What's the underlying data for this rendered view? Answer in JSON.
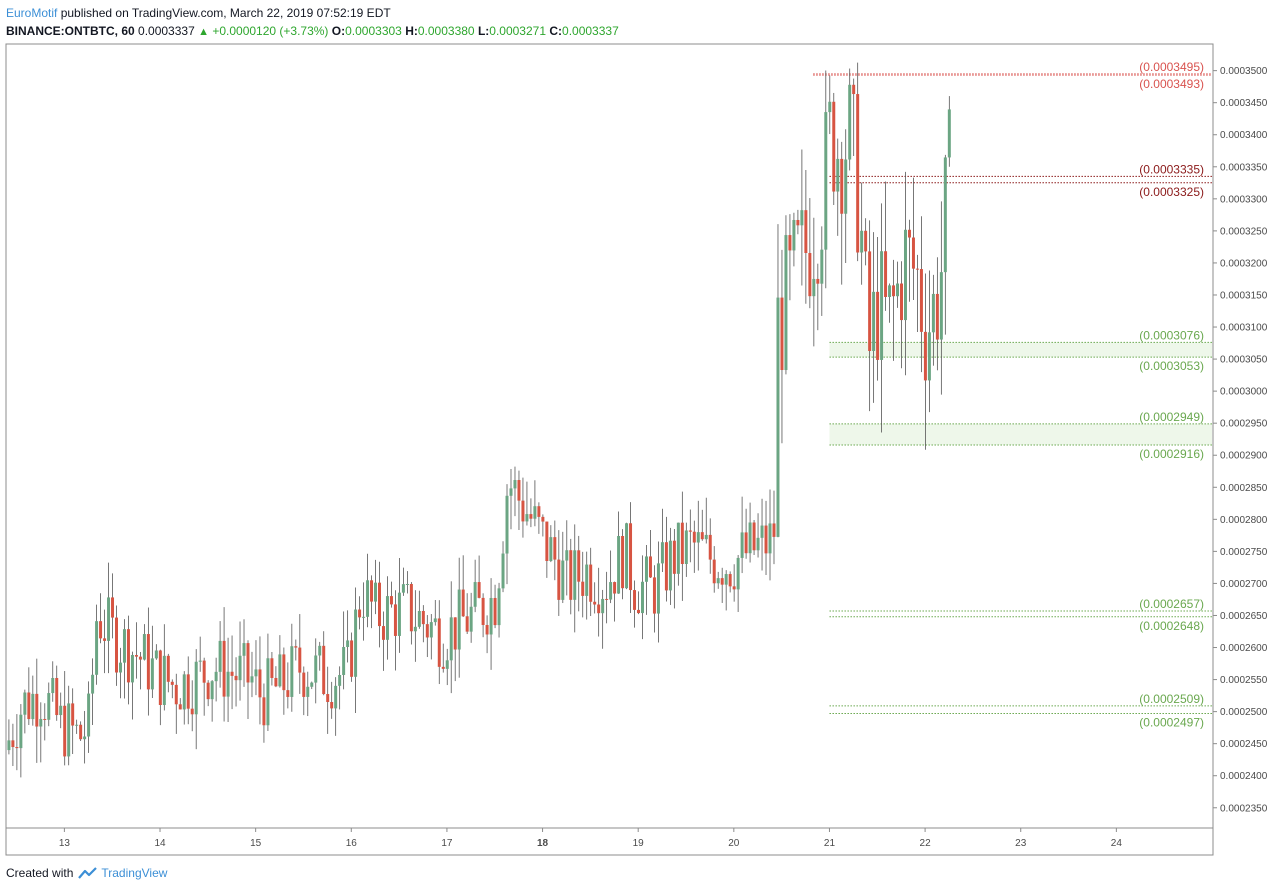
{
  "header": {
    "author": "EuroMotif",
    "published_text": "published on TradingView.com, March 22, 2019 07:52:19 EDT",
    "symbol": "BINANCE:ONTBTC, 60",
    "last": "0.0003337",
    "change": "+0.0000120 (+3.73%)",
    "o_label": "O:",
    "o_value": "0.0003303",
    "h_label": "H:",
    "h_value": "0.0003380",
    "l_label": "L:",
    "l_value": "0.0003271",
    "c_label": "C:",
    "c_value": "0.0003337"
  },
  "footer": {
    "created_with": "Created with",
    "brand": "TradingView"
  },
  "colors": {
    "up": "#6ba583",
    "down": "#d75442",
    "resistance": "#d9534f",
    "resistance_dark": "#8b1a1a",
    "support": "#6aa84f",
    "support_fill": "#eef7ea"
  },
  "chart_data": {
    "type": "candlestick",
    "symbol": "BINANCE:ONTBTC",
    "interval": "60",
    "xlim": [
      12.4,
      25.0
    ],
    "ylim": [
      0.000232,
      0.000354
    ],
    "x_ticks": [
      {
        "label": "13",
        "day": 13,
        "bold": false
      },
      {
        "label": "14",
        "day": 14,
        "bold": false
      },
      {
        "label": "15",
        "day": 15,
        "bold": false
      },
      {
        "label": "16",
        "day": 16,
        "bold": false
      },
      {
        "label": "17",
        "day": 17,
        "bold": false
      },
      {
        "label": "18",
        "day": 18,
        "bold": true
      },
      {
        "label": "19",
        "day": 19,
        "bold": false
      },
      {
        "label": "20",
        "day": 20,
        "bold": false
      },
      {
        "label": "21",
        "day": 21,
        "bold": false
      },
      {
        "label": "22",
        "day": 22,
        "bold": false
      },
      {
        "label": "23",
        "day": 23,
        "bold": false
      },
      {
        "label": "24",
        "day": 24,
        "bold": false
      }
    ],
    "y_ticks": [
      "0.0003500",
      "0.0003450",
      "0.0003400",
      "0.0003350",
      "0.0003300",
      "0.0003250",
      "0.0003200",
      "0.0003150",
      "0.0003100",
      "0.0003050",
      "0.0003000",
      "0.0002950",
      "0.0002900",
      "0.0002850",
      "0.0002800",
      "0.0002750",
      "0.0002700",
      "0.0002650",
      "0.0002600",
      "0.0002550",
      "0.0002500",
      "0.0002450",
      "0.0002400",
      "0.0002350"
    ],
    "price_path": [
      [
        12.42,
        0.000244
      ],
      [
        12.6,
        0.000251
      ],
      [
        12.8,
        0.000253
      ],
      [
        13.0,
        0.000248
      ],
      [
        13.2,
        0.000246
      ],
      [
        13.3,
        0.000248
      ],
      [
        13.38,
        0.000265
      ],
      [
        13.6,
        0.000261
      ],
      [
        13.8,
        0.000259
      ],
      [
        14.0,
        0.000256
      ],
      [
        14.2,
        0.000254
      ],
      [
        14.4,
        0.000255
      ],
      [
        14.6,
        0.000257
      ],
      [
        14.8,
        0.000256
      ],
      [
        15.0,
        0.000255
      ],
      [
        15.1,
        0.0002525
      ],
      [
        15.3,
        0.000254
      ],
      [
        15.5,
        0.000257
      ],
      [
        15.8,
        0.0002555
      ],
      [
        16.0,
        0.000256
      ],
      [
        16.15,
        0.000269
      ],
      [
        16.3,
        0.000265
      ],
      [
        16.6,
        0.000266
      ],
      [
        16.8,
        0.000264
      ],
      [
        17.0,
        0.000262
      ],
      [
        17.2,
        0.000264
      ],
      [
        17.4,
        0.000266
      ],
      [
        17.55,
        0.000268
      ],
      [
        17.68,
        0.000286
      ],
      [
        17.85,
        0.000282
      ],
      [
        18.0,
        0.000278
      ],
      [
        18.2,
        0.000273
      ],
      [
        18.3,
        0.00027
      ],
      [
        18.5,
        0.000272
      ],
      [
        18.7,
        0.00027
      ],
      [
        18.9,
        0.000275
      ],
      [
        19.0,
        0.00027
      ],
      [
        19.2,
        0.000269
      ],
      [
        19.4,
        0.000274
      ],
      [
        19.6,
        0.000276
      ],
      [
        19.8,
        0.000274
      ],
      [
        20.0,
        0.000273
      ],
      [
        20.2,
        0.000275
      ],
      [
        20.35,
        0.000276
      ],
      [
        20.46,
        0.000277
      ],
      [
        20.5,
        0.00031
      ],
      [
        20.7,
        0.000319
      ],
      [
        20.85,
        0.000324
      ],
      [
        20.95,
        0.000329
      ],
      [
        21.05,
        0.00034
      ],
      [
        21.15,
        0.000338
      ],
      [
        21.25,
        0.00034
      ],
      [
        21.32,
        0.000334
      ],
      [
        21.38,
        0.000323
      ],
      [
        21.45,
        0.000305
      ],
      [
        21.55,
        0.000314
      ],
      [
        21.65,
        0.00031
      ],
      [
        21.75,
        0.000315
      ],
      [
        21.82,
        0.000321
      ],
      [
        21.92,
        0.000319
      ],
      [
        21.98,
        0.000317
      ],
      [
        22.03,
        0.00031
      ],
      [
        22.12,
        0.000312
      ],
      [
        22.2,
        0.000317
      ],
      [
        22.27,
        0.0003303
      ],
      [
        22.29,
        0.0003337
      ]
    ],
    "levels": [
      {
        "label": "(0.0003495)",
        "value": 0.0003495,
        "kind": "resistance"
      },
      {
        "label": "(0.0003493)",
        "value": 0.0003493,
        "kind": "resistance"
      },
      {
        "label": "(0.0003335)",
        "value": 0.0003335,
        "kind": "resistance_dark"
      },
      {
        "label": "(0.0003325)",
        "value": 0.0003325,
        "kind": "resistance_dark"
      },
      {
        "label": "(0.0003076)",
        "value": 0.0003076,
        "kind": "support"
      },
      {
        "label": "(0.0003053)",
        "value": 0.0003053,
        "kind": "support"
      },
      {
        "label": "(0.0002949)",
        "value": 0.0002949,
        "kind": "support"
      },
      {
        "label": "(0.0002916)",
        "value": 0.0002916,
        "kind": "support"
      },
      {
        "label": "(0.0002657)",
        "value": 0.0002657,
        "kind": "support"
      },
      {
        "label": "(0.0002648)",
        "value": 0.0002648,
        "kind": "support"
      },
      {
        "label": "(0.0002509)",
        "value": 0.0002509,
        "kind": "support"
      },
      {
        "label": "(0.0002497)",
        "value": 0.0002497,
        "kind": "support"
      }
    ],
    "zones": [
      {
        "from": 0.0003053,
        "to": 0.0003076,
        "start_day": 21.0,
        "kind": "support"
      },
      {
        "from": 0.0002916,
        "to": 0.0002949,
        "start_day": 21.0,
        "kind": "support"
      }
    ]
  }
}
